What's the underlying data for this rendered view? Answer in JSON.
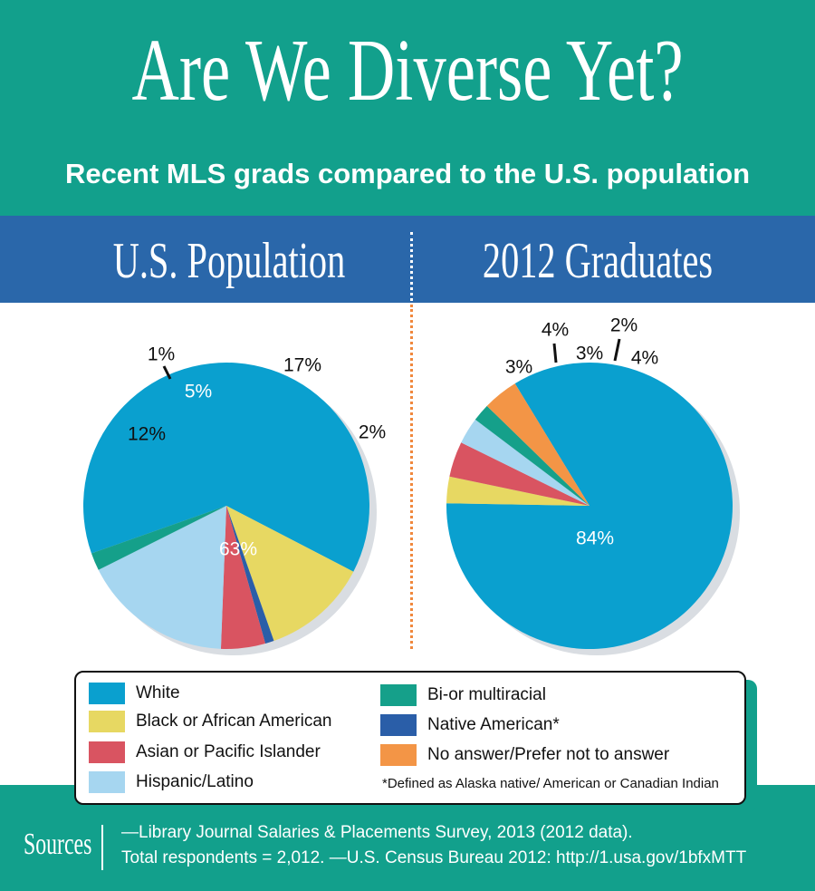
{
  "header": {
    "title": "Are We Diverse Yet?",
    "subtitle": "Recent MLS grads compared to the U.S. population"
  },
  "colors": {
    "header_bg": "#12a08c",
    "bar_bg": "#2a67aa",
    "white": "#0aa0cf",
    "black": "#e7d862",
    "asian": "#d95461",
    "hispanic": "#a6d6f0",
    "multiracial": "#15a08a",
    "native": "#2a5ea8",
    "no_answer": "#f39546"
  },
  "chart_data": [
    {
      "type": "pie",
      "title": "U.S. Population",
      "series": [
        {
          "name": "White",
          "value": 63,
          "label": "63%"
        },
        {
          "name": "Black or African American",
          "value": 12,
          "label": "12%"
        },
        {
          "name": "Native American*",
          "value": 1,
          "label": "1%"
        },
        {
          "name": "Asian or Pacific Islander",
          "value": 5,
          "label": "5%"
        },
        {
          "name": "Hispanic/Latino",
          "value": 17,
          "label": "17%"
        },
        {
          "name": "Bi-or multiracial",
          "value": 2,
          "label": "2%"
        }
      ]
    },
    {
      "type": "pie",
      "title": "2012 Graduates",
      "series": [
        {
          "name": "White",
          "value": 84,
          "label": "84%"
        },
        {
          "name": "Black or African American",
          "value": 3,
          "label": "3%"
        },
        {
          "name": "Asian or Pacific Islander",
          "value": 4,
          "label": "4%"
        },
        {
          "name": "Hispanic/Latino",
          "value": 3,
          "label": "3%"
        },
        {
          "name": "Bi-or multiracial",
          "value": 2,
          "label": "2%"
        },
        {
          "name": "No answer/Prefer not to answer",
          "value": 4,
          "label": "4%"
        }
      ]
    }
  ],
  "legend": {
    "items": [
      {
        "label": "White"
      },
      {
        "label": "Black or African American"
      },
      {
        "label": "Asian or Pacific Islander"
      },
      {
        "label": "Hispanic/Latino"
      },
      {
        "label": "Bi-or multiracial"
      },
      {
        "label": "Native American*"
      },
      {
        "label": "No answer/Prefer not to answer"
      }
    ],
    "note": "*Defined as Alaska native/ American or Canadian Indian"
  },
  "sources": {
    "label": "Sources",
    "line1": "—Library Journal Salaries & Placements Survey, 2013 (2012 data).",
    "line2": "Total respondents = 2,012. —U.S. Census Bureau 2012: http://1.usa.gov/1bfxMTT"
  }
}
